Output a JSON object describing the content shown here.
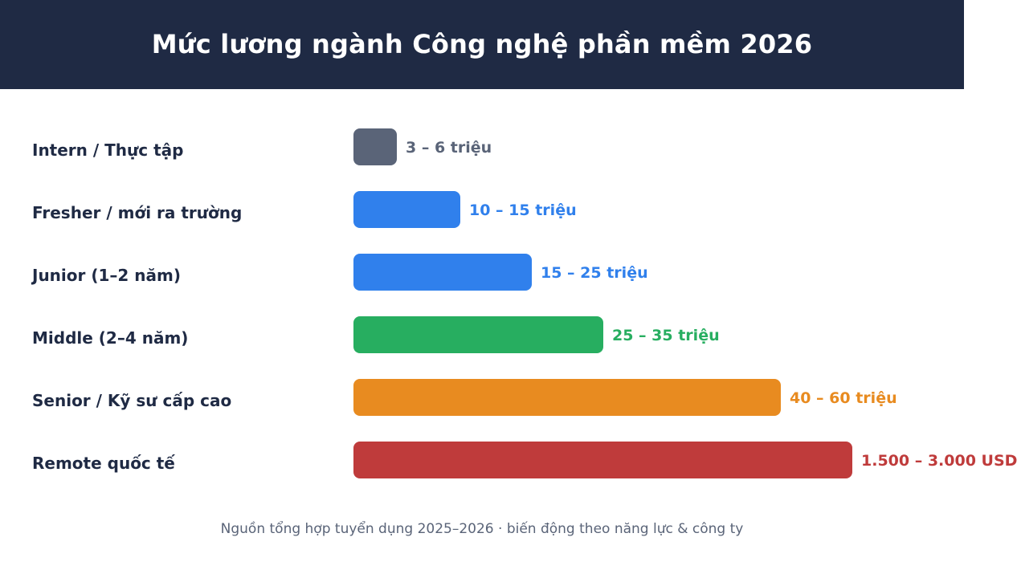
{
  "header": {
    "title": "Mức lương ngành Công nghệ phần mềm 2026"
  },
  "footnote": "Nguồn tổng hợp tuyển dụng 2025–2026 · biến động theo năng lực & công ty",
  "chart_data": {
    "type": "bar",
    "orientation": "horizontal",
    "title": "Mức lương ngành Công nghệ phần mềm 2026",
    "categories": [
      "Intern / Thực tập",
      "Fresher / mới ra trường",
      "Junior (1–2 năm)",
      "Middle (2–4 năm)",
      "Senior / Kỹ sư cấp cao",
      "Remote quốc tế"
    ],
    "values": [
      3,
      10,
      15,
      25,
      40,
      1500
    ],
    "value_labels": [
      "3 – 6 triệu",
      "10 – 15 triệu",
      "15 – 25 triệu",
      "25 – 35 triệu",
      "40 – 60 triệu",
      "1.500 – 3.000 USD"
    ],
    "colors": [
      "#5a6478",
      "#3080ec",
      "#3080ec",
      "#27ae60",
      "#e88b20",
      "#bf3b3b"
    ],
    "relative_lengths": [
      0.087,
      0.214,
      0.357,
      0.5,
      0.857,
      1.0
    ],
    "xlabel": "",
    "ylabel": "",
    "grid": false,
    "legend": "none"
  }
}
